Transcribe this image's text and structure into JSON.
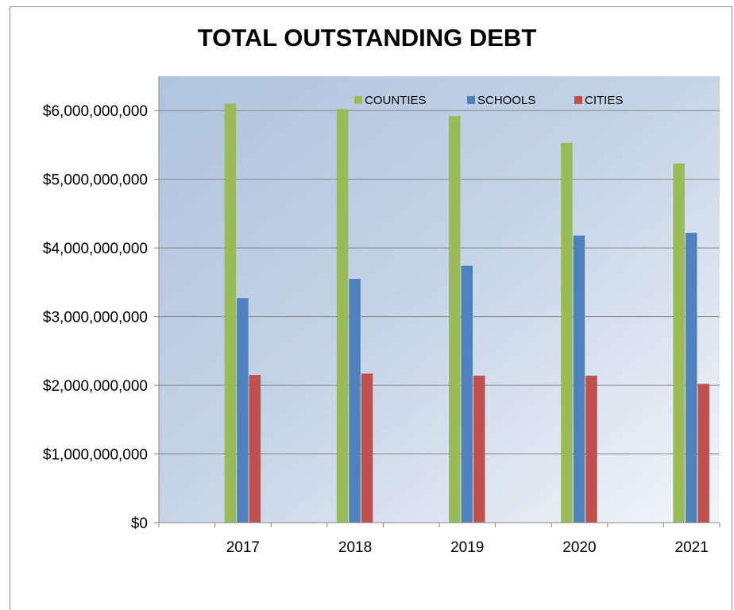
{
  "chart_data": {
    "type": "bar",
    "title": "TOTAL OUTSTANDING DEBT",
    "categories": [
      "2017",
      "2018",
      "2019",
      "2020",
      "2021"
    ],
    "series": [
      {
        "name": "COUNTIES",
        "color": "#9bbb59",
        "values": [
          6100000000,
          6020000000,
          5920000000,
          5530000000,
          5230000000
        ]
      },
      {
        "name": "SCHOOLS",
        "color": "#4f81bd",
        "values": [
          3270000000,
          3550000000,
          3740000000,
          4180000000,
          4220000000
        ]
      },
      {
        "name": "CITIES",
        "color": "#c0504d",
        "values": [
          2150000000,
          2170000000,
          2140000000,
          2140000000,
          2020000000
        ]
      }
    ],
    "ylim": [
      0,
      6500000000
    ],
    "yticks": [
      0,
      1000000000,
      2000000000,
      3000000000,
      4000000000,
      5000000000,
      6000000000
    ],
    "ytick_labels": [
      "$0",
      "$1,000,000,000",
      "$2,000,000,000",
      "$3,000,000,000",
      "$4,000,000,000",
      "$5,000,000,000",
      "$6,000,000,000"
    ],
    "xlabel": "",
    "ylabel": "",
    "grid": true,
    "legend_position": "top-right",
    "plot_background": "blue gradient"
  }
}
